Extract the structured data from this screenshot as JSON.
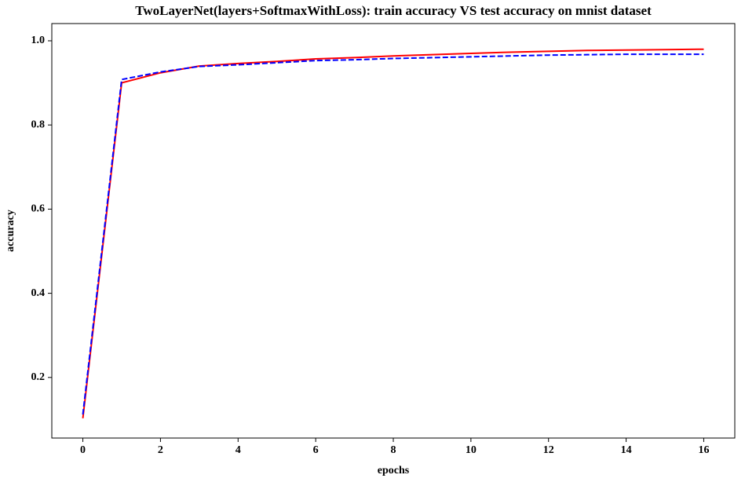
{
  "chart_data": {
    "type": "line",
    "title": "TwoLayerNet(layers+SoftmaxWithLoss): train accuracy VS test accuracy on mnist dataset",
    "xlabel": "epochs",
    "ylabel": "accuracy",
    "x": [
      0,
      1,
      2,
      3,
      4,
      5,
      6,
      7,
      8,
      9,
      10,
      11,
      12,
      13,
      14,
      15,
      16
    ],
    "series": [
      {
        "color": "#ff0000",
        "dashed": false,
        "values": [
          0.103,
          0.9,
          0.924,
          0.94,
          0.946,
          0.951,
          0.957,
          0.96,
          0.964,
          0.967,
          0.97,
          0.973,
          0.975,
          0.977,
          0.978,
          0.979,
          0.98
        ]
      },
      {
        "color": "#0000ff",
        "dashed": true,
        "values": [
          0.112,
          0.908,
          0.926,
          0.939,
          0.943,
          0.948,
          0.953,
          0.955,
          0.958,
          0.96,
          0.962,
          0.964,
          0.966,
          0.967,
          0.968,
          0.968,
          0.968
        ]
      }
    ],
    "xlim": [
      -0.8,
      16.8
    ],
    "xticks": [
      0,
      2,
      4,
      6,
      8,
      10,
      12,
      14,
      16
    ],
    "ylim": [
      0.056,
      1.041
    ],
    "yticks": [
      0.2,
      0.4,
      0.6,
      0.8,
      {
        "value": 1.0,
        "label": "1.0"
      }
    ],
    "grid": false
  }
}
